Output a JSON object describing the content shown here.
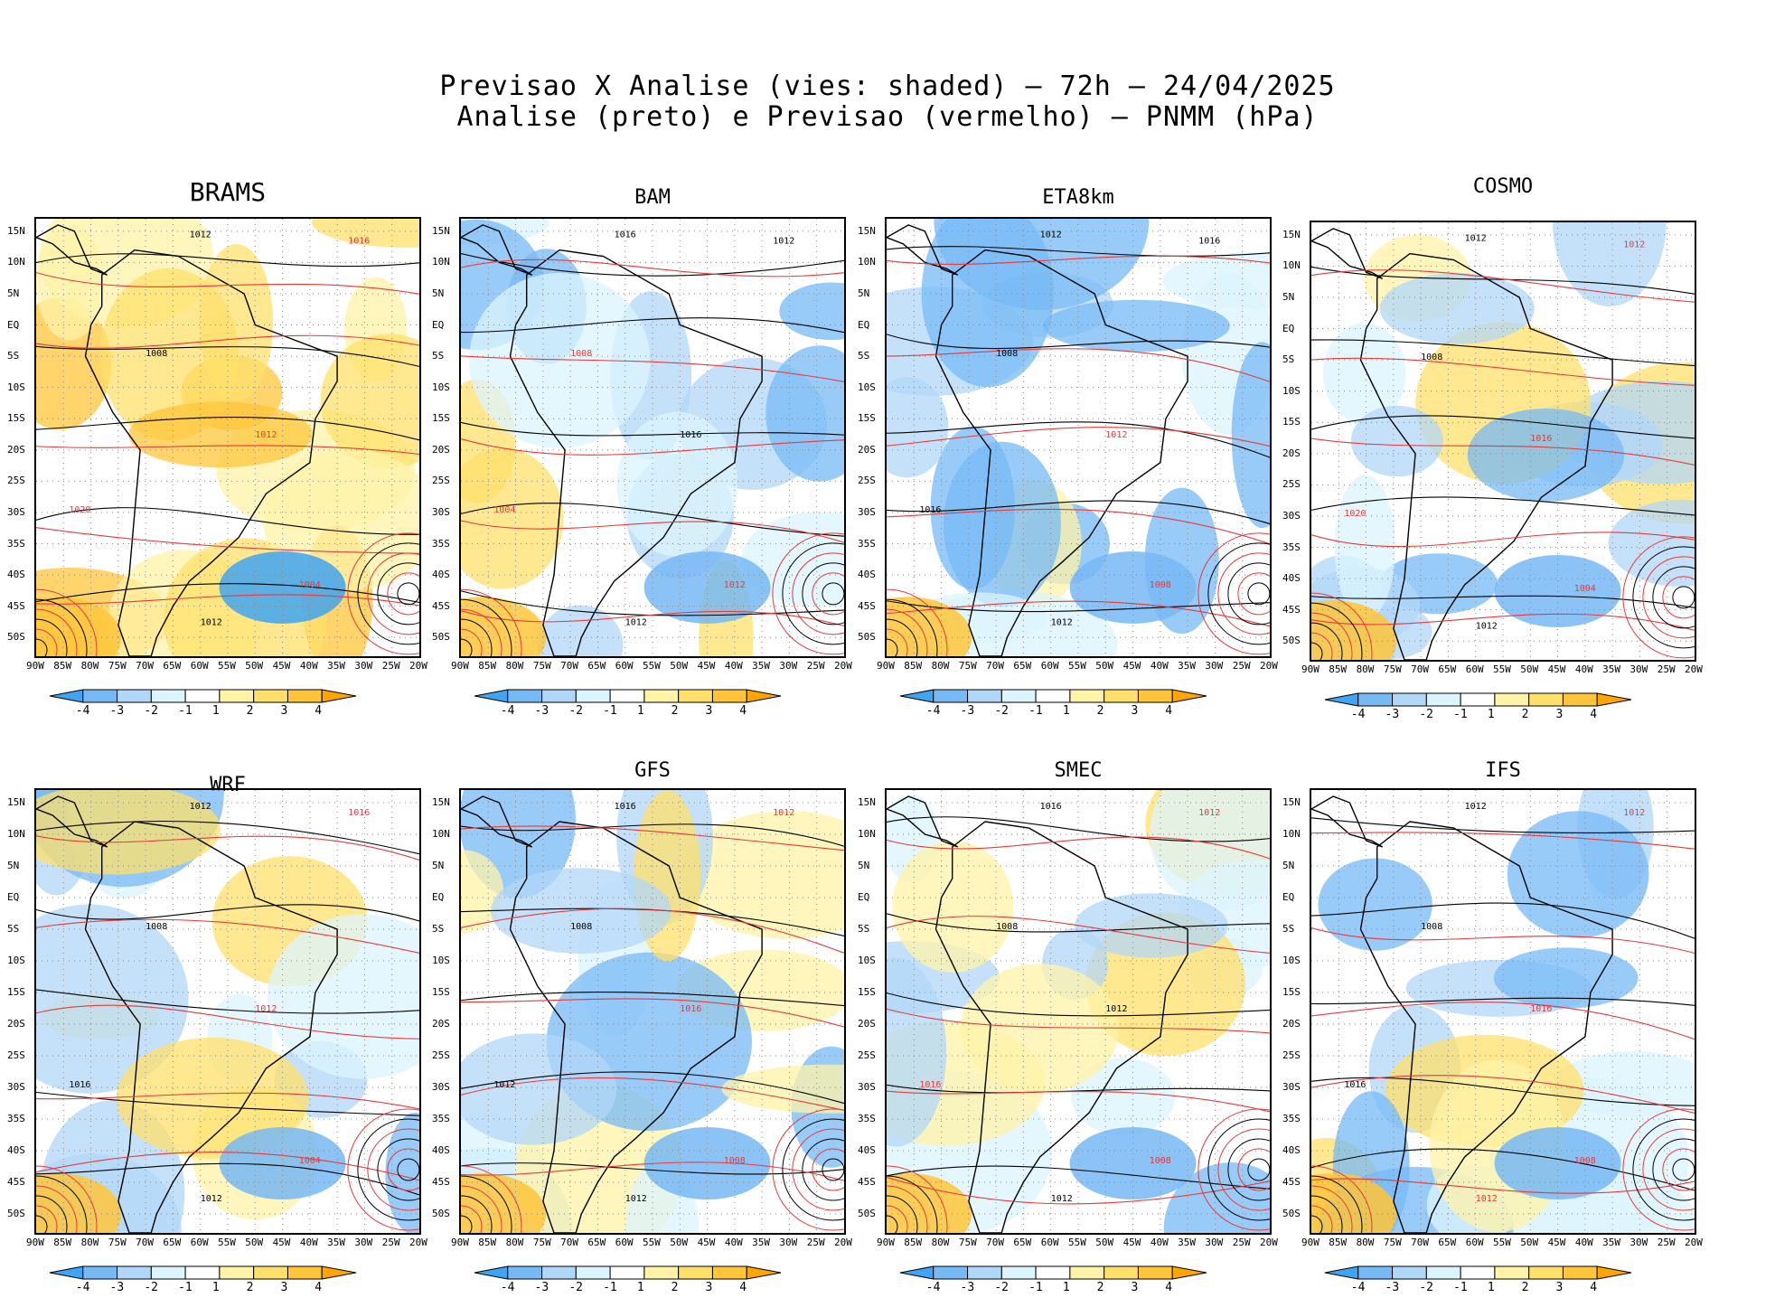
{
  "header": {
    "line1": "Previsao X Analise (vies: shaded) – 72h – 24/04/2025",
    "line2": "Analise (preto) e Previsao (vermelho) – PNMM (hPa)"
  },
  "lat_labels": [
    "15N",
    "10N",
    "5N",
    "EQ",
    "5S",
    "10S",
    "15S",
    "20S",
    "25S",
    "30S",
    "35S",
    "40S",
    "45S",
    "50S"
  ],
  "lon_labels": [
    "90W",
    "85W",
    "80W",
    "75W",
    "70W",
    "65W",
    "60W",
    "55W",
    "50W",
    "45W",
    "40W",
    "35W",
    "30W",
    "25W",
    "20W"
  ],
  "colorbar": {
    "labels": [
      "-4",
      "-3",
      "-2",
      "-1",
      "1",
      "2",
      "3",
      "4"
    ],
    "colors": [
      "#3fa4f2",
      "#77b9f5",
      "#b1d7f8",
      "#dcf4fd",
      "#ffffff",
      "#fff3a8",
      "#ffe06a",
      "#ffc53a",
      "#ffa500"
    ]
  },
  "contour_colors": {
    "analysis": "#000000",
    "forecast": "#e8393b"
  },
  "panels": [
    {
      "name": "BRAMS",
      "labels": [
        [
          "1012",
          "a"
        ],
        [
          "1016",
          "f"
        ],
        [
          "1008",
          "a"
        ],
        [
          "1012",
          "f"
        ],
        [
          "1020",
          "f"
        ],
        [
          "1004",
          "f"
        ],
        [
          "1012",
          "a"
        ]
      ]
    },
    {
      "name": "BAM",
      "labels": [
        [
          "1016",
          "a"
        ],
        [
          "1012",
          "a"
        ],
        [
          "1008",
          "f"
        ],
        [
          "1016",
          "a"
        ],
        [
          "1004",
          "f"
        ],
        [
          "1012",
          "f"
        ],
        [
          "1012",
          "a"
        ]
      ]
    },
    {
      "name": "ETA8km",
      "labels": [
        [
          "1012",
          "a"
        ],
        [
          "1016",
          "a"
        ],
        [
          "1008",
          "a"
        ],
        [
          "1012",
          "f"
        ],
        [
          "1016",
          "a"
        ],
        [
          "1008",
          "f"
        ],
        [
          "1012",
          "a"
        ]
      ]
    },
    {
      "name": "COSMO",
      "labels": [
        [
          "1012",
          "a"
        ],
        [
          "1012",
          "f"
        ],
        [
          "1008",
          "a"
        ],
        [
          "1016",
          "f"
        ],
        [
          "1020",
          "f"
        ],
        [
          "1004",
          "f"
        ],
        [
          "1012",
          "a"
        ]
      ]
    },
    {
      "name": "WRF",
      "labels": [
        [
          "1012",
          "a"
        ],
        [
          "1016",
          "f"
        ],
        [
          "1008",
          "a"
        ],
        [
          "1012",
          "f"
        ],
        [
          "1016",
          "a"
        ],
        [
          "1004",
          "f"
        ],
        [
          "1012",
          "a"
        ]
      ]
    },
    {
      "name": "GFS",
      "labels": [
        [
          "1016",
          "a"
        ],
        [
          "1012",
          "f"
        ],
        [
          "1008",
          "a"
        ],
        [
          "1016",
          "f"
        ],
        [
          "1012",
          "a"
        ],
        [
          "1008",
          "f"
        ],
        [
          "1012",
          "a"
        ]
      ]
    },
    {
      "name": "SMEC",
      "labels": [
        [
          "1016",
          "a"
        ],
        [
          "1012",
          "f"
        ],
        [
          "1008",
          "a"
        ],
        [
          "1012",
          "a"
        ],
        [
          "1016",
          "f"
        ],
        [
          "1008",
          "f"
        ],
        [
          "1012",
          "a"
        ]
      ]
    },
    {
      "name": "IFS",
      "labels": [
        [
          "1012",
          "a"
        ],
        [
          "1012",
          "f"
        ],
        [
          "1008",
          "a"
        ],
        [
          "1016",
          "f"
        ],
        [
          "1016",
          "a"
        ],
        [
          "1008",
          "f"
        ],
        [
          "1012",
          "f"
        ]
      ]
    }
  ]
}
